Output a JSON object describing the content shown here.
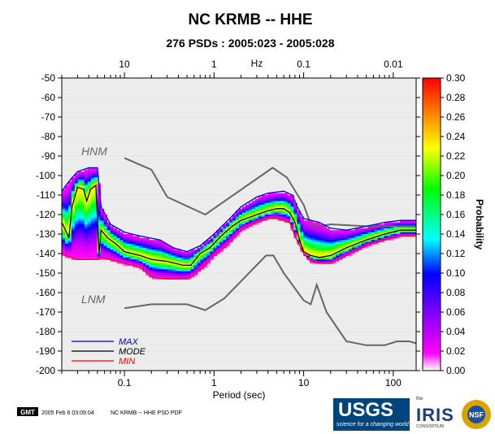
{
  "header": {
    "title": "NC KRMB -- HHE",
    "subtitle": "276 PSDs : 2005:023 - 2005:028"
  },
  "chart_data": {
    "type": "heatmap",
    "title": "NC KRMB -- HHE",
    "subtitle": "276 PSDs : 2005:023 - 2005:028",
    "xlabel": "Period (sec)",
    "x_scale": "log",
    "xlim": [
      0.02,
      180
    ],
    "x_ticks": [
      0.1,
      1,
      10,
      100
    ],
    "x_tick_labels": [
      "0.1",
      "1",
      "10",
      "100"
    ],
    "top_axis": {
      "label": "Hz",
      "ticks": [
        10,
        1,
        0.1,
        0.01
      ],
      "tick_labels": [
        "10",
        "1",
        "0.1",
        "0.01"
      ]
    },
    "ylim": [
      -200,
      -50
    ],
    "y_ticks": [
      -200,
      -190,
      -180,
      -170,
      -160,
      -150,
      -140,
      -130,
      -120,
      -110,
      -100,
      -90,
      -80,
      -70,
      -60,
      -50
    ],
    "y_tick_labels": [
      "-200",
      "-190",
      "-180",
      "-170",
      "-160",
      "-150",
      "-140",
      "-130",
      "-120",
      "-110",
      "-100",
      "-90",
      "-80",
      "-70",
      "-60",
      "-50"
    ],
    "colorbar": {
      "label": "Probability",
      "range": [
        0.0,
        0.3
      ],
      "ticks": [
        0.0,
        0.02,
        0.04,
        0.06,
        0.08,
        0.1,
        0.12,
        0.14,
        0.16,
        0.18,
        0.2,
        0.22,
        0.24,
        0.26,
        0.28,
        0.3
      ],
      "tick_labels": [
        "0.00",
        "0.02",
        "0.04",
        "0.06",
        "0.08",
        "0.10",
        "0.12",
        "0.14",
        "0.16",
        "0.18",
        "0.20",
        "0.22",
        "0.24",
        "0.26",
        "0.28",
        "0.30"
      ],
      "colors": [
        "#ffffff",
        "#ff00ff",
        "#0000ff",
        "#00ffff",
        "#00ff00",
        "#ffff00",
        "#ff8000",
        "#ff0000"
      ]
    },
    "legend": {
      "placement": "bottom-left",
      "entries": [
        {
          "label": "MAX",
          "color": "#0000cc"
        },
        {
          "label": "MODE",
          "color": "#000000"
        },
        {
          "label": "MIN",
          "color": "#ff0000"
        }
      ]
    },
    "reference_models": [
      {
        "name": "HNM",
        "color": "#666666",
        "points": [
          [
            0.1,
            -91
          ],
          [
            0.2,
            -97
          ],
          [
            0.3,
            -111
          ],
          [
            0.8,
            -120
          ],
          [
            4.5,
            -96
          ],
          [
            6.5,
            -101
          ],
          [
            10,
            -115
          ],
          [
            12,
            -125
          ],
          [
            15,
            -126
          ],
          [
            20,
            -125
          ],
          [
            50,
            -126
          ],
          [
            180,
            -126
          ]
        ]
      },
      {
        "name": "LNM",
        "color": "#666666",
        "points": [
          [
            0.1,
            -168
          ],
          [
            0.2,
            -166
          ],
          [
            0.5,
            -166
          ],
          [
            0.8,
            -169
          ],
          [
            1.3,
            -163
          ],
          [
            3.8,
            -141
          ],
          [
            4.6,
            -141
          ],
          [
            6,
            -150
          ],
          [
            10,
            -164
          ],
          [
            12,
            -166
          ],
          [
            14,
            -156
          ],
          [
            18,
            -170
          ],
          [
            30,
            -185
          ],
          [
            50,
            -187
          ],
          [
            80,
            -187
          ],
          [
            110,
            -185
          ],
          [
            150,
            -185
          ],
          [
            180,
            -186
          ]
        ]
      }
    ],
    "series": [
      {
        "name": "MAX",
        "color": "#0000cc",
        "points": [
          [
            0.02,
            -108
          ],
          [
            0.025,
            -102
          ],
          [
            0.03,
            -98
          ],
          [
            0.04,
            -96
          ],
          [
            0.05,
            -96
          ],
          [
            0.055,
            -116
          ],
          [
            0.07,
            -125
          ],
          [
            0.1,
            -129
          ],
          [
            0.15,
            -131
          ],
          [
            0.25,
            -133
          ],
          [
            0.35,
            -137
          ],
          [
            0.5,
            -139
          ],
          [
            0.7,
            -136
          ],
          [
            1,
            -130
          ],
          [
            1.5,
            -122
          ],
          [
            2,
            -116
          ],
          [
            3,
            -111
          ],
          [
            4,
            -109
          ],
          [
            6,
            -108
          ],
          [
            7.5,
            -110
          ],
          [
            8.5,
            -116
          ],
          [
            10,
            -122
          ],
          [
            15,
            -124
          ],
          [
            20,
            -127
          ],
          [
            30,
            -128
          ],
          [
            50,
            -126
          ],
          [
            80,
            -124
          ],
          [
            120,
            -123
          ],
          [
            180,
            -123
          ]
        ]
      },
      {
        "name": "MODE",
        "color": "#000000",
        "points": [
          [
            0.02,
            -124
          ],
          [
            0.022,
            -128
          ],
          [
            0.024,
            -132
          ],
          [
            0.026,
            -116
          ],
          [
            0.03,
            -106
          ],
          [
            0.035,
            -107
          ],
          [
            0.038,
            -113
          ],
          [
            0.042,
            -107
          ],
          [
            0.048,
            -105
          ],
          [
            0.052,
            -140
          ],
          [
            0.055,
            -128
          ],
          [
            0.065,
            -132
          ],
          [
            0.08,
            -135
          ],
          [
            0.1,
            -139
          ],
          [
            0.15,
            -141
          ],
          [
            0.2,
            -143
          ],
          [
            0.3,
            -144
          ],
          [
            0.45,
            -146
          ],
          [
            0.55,
            -146
          ],
          [
            0.7,
            -140
          ],
          [
            0.9,
            -137
          ],
          [
            1.2,
            -131
          ],
          [
            1.6,
            -126
          ],
          [
            2,
            -123
          ],
          [
            3,
            -120
          ],
          [
            4,
            -118
          ],
          [
            5,
            -117
          ],
          [
            6,
            -117
          ],
          [
            7,
            -119
          ],
          [
            8,
            -124
          ],
          [
            9,
            -133
          ],
          [
            10,
            -139
          ],
          [
            12,
            -141
          ],
          [
            15,
            -142
          ],
          [
            20,
            -141
          ],
          [
            30,
            -137
          ],
          [
            50,
            -133
          ],
          [
            80,
            -130
          ],
          [
            120,
            -128
          ],
          [
            180,
            -128
          ]
        ]
      },
      {
        "name": "MIN",
        "color": "#ff0000",
        "points": [
          [
            0.02,
            -140
          ],
          [
            0.025,
            -142
          ],
          [
            0.03,
            -143
          ],
          [
            0.05,
            -143
          ],
          [
            0.055,
            -142
          ],
          [
            0.07,
            -143
          ],
          [
            0.1,
            -145
          ],
          [
            0.15,
            -147
          ],
          [
            0.2,
            -152
          ],
          [
            0.3,
            -153
          ],
          [
            0.5,
            -153
          ],
          [
            0.6,
            -151
          ],
          [
            0.8,
            -146
          ],
          [
            1,
            -141
          ],
          [
            1.3,
            -137
          ],
          [
            1.6,
            -133
          ],
          [
            2,
            -128
          ],
          [
            3,
            -124
          ],
          [
            4,
            -122
          ],
          [
            5,
            -122
          ],
          [
            7,
            -124
          ],
          [
            8,
            -131
          ],
          [
            10,
            -140
          ],
          [
            12,
            -144
          ],
          [
            15,
            -145
          ],
          [
            20,
            -145
          ],
          [
            30,
            -141
          ],
          [
            50,
            -136
          ],
          [
            80,
            -133
          ],
          [
            120,
            -131
          ],
          [
            180,
            -131
          ]
        ]
      }
    ],
    "density_band": {
      "upper": [
        [
          0.02,
          -108
        ],
        [
          0.025,
          -102
        ],
        [
          0.03,
          -98
        ],
        [
          0.04,
          -96
        ],
        [
          0.05,
          -96
        ],
        [
          0.055,
          -116
        ],
        [
          0.07,
          -125
        ],
        [
          0.1,
          -129
        ],
        [
          0.15,
          -131
        ],
        [
          0.25,
          -133
        ],
        [
          0.35,
          -137
        ],
        [
          0.5,
          -139
        ],
        [
          0.7,
          -136
        ],
        [
          1,
          -130
        ],
        [
          1.5,
          -122
        ],
        [
          2,
          -116
        ],
        [
          3,
          -111
        ],
        [
          4,
          -109
        ],
        [
          6,
          -108
        ],
        [
          7.5,
          -110
        ],
        [
          8.5,
          -116
        ],
        [
          10,
          -122
        ],
        [
          15,
          -124
        ],
        [
          20,
          -127
        ],
        [
          30,
          -128
        ],
        [
          50,
          -126
        ],
        [
          80,
          -124
        ],
        [
          120,
          -123
        ],
        [
          180,
          -123
        ]
      ],
      "lower": [
        [
          0.02,
          -140
        ],
        [
          0.025,
          -142
        ],
        [
          0.03,
          -143
        ],
        [
          0.05,
          -143
        ],
        [
          0.055,
          -142
        ],
        [
          0.07,
          -143
        ],
        [
          0.1,
          -145
        ],
        [
          0.15,
          -147
        ],
        [
          0.2,
          -152
        ],
        [
          0.3,
          -153
        ],
        [
          0.5,
          -153
        ],
        [
          0.6,
          -151
        ],
        [
          0.8,
          -146
        ],
        [
          1,
          -141
        ],
        [
          1.3,
          -137
        ],
        [
          1.6,
          -133
        ],
        [
          2,
          -128
        ],
        [
          3,
          -124
        ],
        [
          4,
          -122
        ],
        [
          5,
          -122
        ],
        [
          7,
          -124
        ],
        [
          8,
          -131
        ],
        [
          10,
          -140
        ],
        [
          12,
          -144
        ],
        [
          15,
          -145
        ],
        [
          20,
          -145
        ],
        [
          30,
          -141
        ],
        [
          50,
          -136
        ],
        [
          80,
          -133
        ],
        [
          120,
          -131
        ],
        [
          180,
          -131
        ]
      ],
      "peak_probability": 0.22
    }
  },
  "footer": {
    "gmt_badge": "GMT",
    "timestamp": "2005 Feb  6 03:09:04",
    "caption": "NC KRMB -- HHE PSD PDF"
  },
  "logos": {
    "usgs_name": "USGS",
    "usgs_tagline": "science for a changing world",
    "iris_the": "the",
    "iris_name": "IRIS",
    "iris_consortium": "CONSORTIUM",
    "nsf_name": "NSF"
  }
}
